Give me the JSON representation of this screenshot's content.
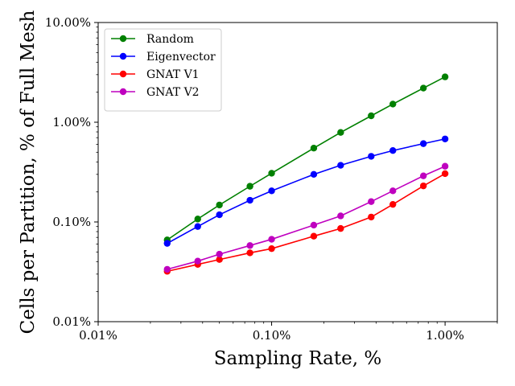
{
  "chart_data": {
    "type": "line",
    "xlabel": "Sampling Rate, %",
    "ylabel": "Cells per Partition, % of Full Mesh",
    "xscale": "log",
    "yscale": "log",
    "xlim": [
      0.01,
      2.0
    ],
    "ylim": [
      0.01,
      10.0
    ],
    "x_ticks": [
      0.01,
      0.1,
      1.0
    ],
    "x_tick_labels": [
      "0.01%",
      "0.10%",
      "1.00%"
    ],
    "y_ticks": [
      0.01,
      0.1,
      1.0,
      10.0
    ],
    "y_tick_labels": [
      "0.01%",
      "0.10%",
      "1.00%",
      "10.00%"
    ],
    "grid": false,
    "legend_position": "top-left",
    "x": [
      0.025,
      0.0375,
      0.05,
      0.075,
      0.1,
      0.175,
      0.25,
      0.375,
      0.5,
      0.75,
      1.0
    ],
    "series": [
      {
        "name": "Random",
        "color": "#008000",
        "values": [
          0.066,
          0.107,
          0.148,
          0.228,
          0.308,
          0.55,
          0.79,
          1.16,
          1.52,
          2.2,
          2.85
        ]
      },
      {
        "name": "Eigenvector",
        "color": "#0000ff",
        "values": [
          0.061,
          0.09,
          0.118,
          0.165,
          0.205,
          0.3,
          0.37,
          0.455,
          0.52,
          0.61,
          0.68
        ]
      },
      {
        "name": "GNAT V1",
        "color": "#ff0000",
        "values": [
          0.032,
          0.0375,
          0.042,
          0.049,
          0.054,
          0.072,
          0.086,
          0.112,
          0.15,
          0.23,
          0.305
        ]
      },
      {
        "name": "GNAT V2",
        "color": "#bf00bf",
        "values": [
          0.0335,
          0.0405,
          0.0475,
          0.058,
          0.067,
          0.093,
          0.115,
          0.16,
          0.205,
          0.29,
          0.362
        ]
      }
    ]
  }
}
